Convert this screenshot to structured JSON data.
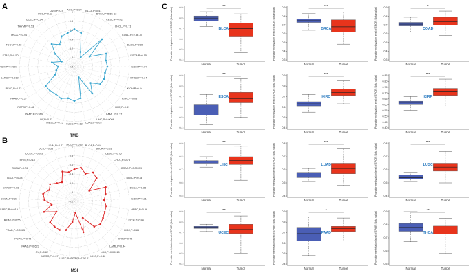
{
  "panels": {
    "A": "A",
    "B": "B",
    "C": "C"
  },
  "radar_A": {
    "title": "TMB",
    "color": "#3aa6cf",
    "ticks": [
      "1",
      "0.8",
      "0.6",
      "0.4",
      "0.2",
      "0",
      "-0.2"
    ],
    "labels": [
      "ACC,P=0.99",
      "BLCA,P=0.41",
      "BRCA,P=5.6E-13",
      "CESC,P=0.02",
      "CHOL,P=0.71",
      "COAD,P=2.5E-05",
      "DLBC,P=0.88",
      "ESCA,P=0.15",
      "GBM,P=0.74",
      "HNSC,P=0.34",
      "KICH,P=0.64",
      "KIRC,P=0.08",
      "KIRP,P=0.31",
      "LAML,P=0.17",
      "LIHC,P=0.0006",
      "LUAD,P=0.03",
      "LUSC,P=0.13",
      "MESO,P=0.15",
      "OV,P=0.43",
      "PAAD,P=0.919",
      "PCPG,P=0.48",
      "PRAD,P=0.37",
      "READ,P=0.23",
      "SARC,P=0.012",
      "SKCM,P=0.0007",
      "STAD,P=0.50",
      "TGCT,P=0.28",
      "THCA,P=0.44",
      "THYM,P=0.53",
      "UCEC,P=0.24",
      "UCS,P=0.12",
      "UVM,P=0.9"
    ],
    "values": [
      0.62,
      0.55,
      0.15,
      0.05,
      0.65,
      0.2,
      0.55,
      0.5,
      0.52,
      0.48,
      0.5,
      0.48,
      0.3,
      0.5,
      0.05,
      0.5,
      0.55,
      0.5,
      0.55,
      0.52,
      0.55,
      0.55,
      0.25,
      0.2,
      0.15,
      0.3,
      0.1,
      0.3,
      0.5,
      0.38,
      0.52,
      0.55
    ]
  },
  "radar_B": {
    "title": "MSI",
    "color": "#dd2525",
    "ticks": [
      "1",
      "0.8",
      "0.6",
      "0.4",
      "0.2",
      "0",
      "-0.2"
    ],
    "labels": [
      "ACC,P=0.513",
      "BLCA,P=0.44",
      "BRCA,P=0.28",
      "CESC,P=0.76",
      "CHOL,P=0.73",
      "COAD,P=0.00039",
      "DLBC,P=0.48",
      "ESCA,P=0.86",
      "GBM,P=0.21",
      "HNSC,P=0.96",
      "KICH,P=0.84",
      "KIRC,P=0.85",
      "KIRP,P=0.42",
      "LAML,P=0.44",
      "LGG,P=0.00015",
      "LIHC,P=0.46",
      "LUAD,P=7.9E-11",
      "LUSC,P=0.0037",
      "MESO,P=0.07",
      "OV,P=0.82",
      "PAAD,P=0.623",
      "PCPG,P=0.42",
      "PRAD,P=0.0065",
      "READ,P=0.55",
      "SARC,P=0.019",
      "SKCM,P=0.21",
      "STAD,P=0.68",
      "TGCT,P=0.28",
      "THCA,P=0.76",
      "THYM,P=0.18",
      "UCEC,P=0.028",
      "UCS,P=0.58",
      "UVM,P=0.27"
    ],
    "values": [
      0.5,
      0.55,
      0.45,
      0.55,
      0.5,
      0.2,
      0.55,
      0.5,
      0.45,
      0.5,
      0.5,
      0.52,
      0.55,
      0.5,
      0.2,
      0.5,
      0.05,
      0.25,
      0.45,
      0.5,
      0.5,
      0.5,
      0.25,
      0.5,
      0.3,
      0.45,
      0.5,
      0.4,
      0.45,
      0.35,
      0.3,
      0.5,
      0.45
    ]
  },
  "chart_data": {
    "type": "boxplot",
    "ylabel": "Promoter methylation level of EPOR (Beta value)",
    "categories": [
      "Normal",
      "Tumor"
    ],
    "colors": {
      "normal": "#4a5eb5",
      "tumor": "#e8341c"
    },
    "plots": [
      {
        "name": "BLCA",
        "sig": "***",
        "ymin": 0.4,
        "ymax": 0.9,
        "ticks": [
          "0.4",
          "0.5",
          "0.6",
          "0.7",
          "0.8",
          "0.9"
        ],
        "normal": [
          0.72,
          0.77,
          0.8,
          0.82,
          0.86
        ],
        "tumor": [
          0.47,
          0.62,
          0.7,
          0.75,
          0.84
        ]
      },
      {
        "name": "BRCA",
        "sig": "***",
        "ymin": 0.3,
        "ymax": 0.9,
        "ticks": [
          "0.3",
          "0.4",
          "0.5",
          "0.6",
          "0.7",
          "0.8",
          "0.9"
        ],
        "normal": [
          0.64,
          0.73,
          0.75,
          0.77,
          0.83
        ],
        "tumor": [
          0.48,
          0.62,
          0.68,
          0.76,
          0.85
        ]
      },
      {
        "name": "COAD",
        "sig": "*",
        "ymin": 0.3,
        "ymax": 0.9,
        "ticks": [
          "0.3",
          "0.4",
          "0.5",
          "0.6",
          "0.7",
          "0.8",
          "0.9"
        ],
        "normal": [
          0.62,
          0.69,
          0.71,
          0.73,
          0.79
        ],
        "tumor": [
          0.58,
          0.7,
          0.74,
          0.79,
          0.86
        ]
      },
      {
        "name": "ESCA",
        "sig": "***",
        "ymin": 0.4,
        "ymax": 0.9,
        "ticks": [
          "0.4",
          "0.5",
          "0.6",
          "0.7",
          "0.8",
          "0.9"
        ],
        "normal": [
          0.43,
          0.52,
          0.56,
          0.62,
          0.72
        ],
        "tumor": [
          0.5,
          0.64,
          0.68,
          0.74,
          0.87
        ]
      },
      {
        "name": "KIRC",
        "sig": "***",
        "ymin": 0.4,
        "ymax": 0.9,
        "ticks": [
          "0.4",
          "0.5",
          "0.6",
          "0.7",
          "0.8",
          "0.9"
        ],
        "normal": [
          0.55,
          0.61,
          0.63,
          0.65,
          0.72
        ],
        "tumor": [
          0.63,
          0.71,
          0.74,
          0.77,
          0.85
        ]
      },
      {
        "name": "KIRP",
        "sig": "***",
        "ymin": 0.4,
        "ymax": 0.85,
        "ticks": [
          "0.40",
          "0.45",
          "0.50",
          "0.55",
          "0.60",
          "0.65",
          "0.70",
          "0.75",
          "0.80",
          "0.85"
        ],
        "normal": [
          0.55,
          0.6,
          0.62,
          0.63,
          0.67
        ],
        "tumor": [
          0.58,
          0.68,
          0.71,
          0.74,
          0.82
        ]
      },
      {
        "name": "LIHC",
        "sig": "***",
        "ymin": 0.5,
        "ymax": 0.9,
        "ticks": [
          "0.5",
          "0.6",
          "0.7",
          "0.8",
          "0.9"
        ],
        "normal": [
          0.72,
          0.75,
          0.76,
          0.77,
          0.8
        ],
        "tumor": [
          0.62,
          0.74,
          0.77,
          0.8,
          0.88
        ]
      },
      {
        "name": "LUAD",
        "sig": "***",
        "ymin": 0.4,
        "ymax": 0.8,
        "ticks": [
          "0.4",
          "0.5",
          "0.6",
          "0.7",
          "0.8"
        ],
        "normal": [
          0.51,
          0.54,
          0.56,
          0.58,
          0.61
        ],
        "tumor": [
          0.48,
          0.57,
          0.61,
          0.65,
          0.76
        ]
      },
      {
        "name": "LUSC",
        "sig": "***",
        "ymin": 0.4,
        "ymax": 0.8,
        "ticks": [
          "0.4",
          "0.5",
          "0.6",
          "0.7",
          "0.8"
        ],
        "normal": [
          0.51,
          0.53,
          0.54,
          0.56,
          0.58
        ],
        "tumor": [
          0.5,
          0.59,
          0.62,
          0.65,
          0.74
        ]
      },
      {
        "name": "UCEC",
        "sig": "***",
        "ymin": 0.4,
        "ymax": 0.9,
        "ticks": [
          "0.4",
          "0.5",
          "0.6",
          "0.7",
          "0.8",
          "0.9"
        ],
        "normal": [
          0.71,
          0.74,
          0.75,
          0.76,
          0.78
        ],
        "tumor": [
          0.5,
          0.69,
          0.73,
          0.78,
          0.86
        ]
      },
      {
        "name": "PAAD",
        "sig": "*",
        "ymin": 0.4,
        "ymax": 0.9,
        "ticks": [
          "0.4",
          "0.5",
          "0.6",
          "0.7",
          "0.8",
          "0.9"
        ],
        "normal": [
          0.48,
          0.62,
          0.69,
          0.75,
          0.85
        ],
        "tumor": [
          0.62,
          0.71,
          0.74,
          0.76,
          0.84
        ]
      },
      {
        "name": "THCA",
        "sig": "**",
        "ymin": 0.5,
        "ymax": 0.9,
        "ticks": [
          "0.5",
          "0.6",
          "0.7",
          "0.8",
          "0.9"
        ],
        "normal": [
          0.67,
          0.75,
          0.78,
          0.81,
          0.9
        ],
        "tumor": [
          0.58,
          0.73,
          0.76,
          0.79,
          0.85
        ]
      }
    ]
  }
}
